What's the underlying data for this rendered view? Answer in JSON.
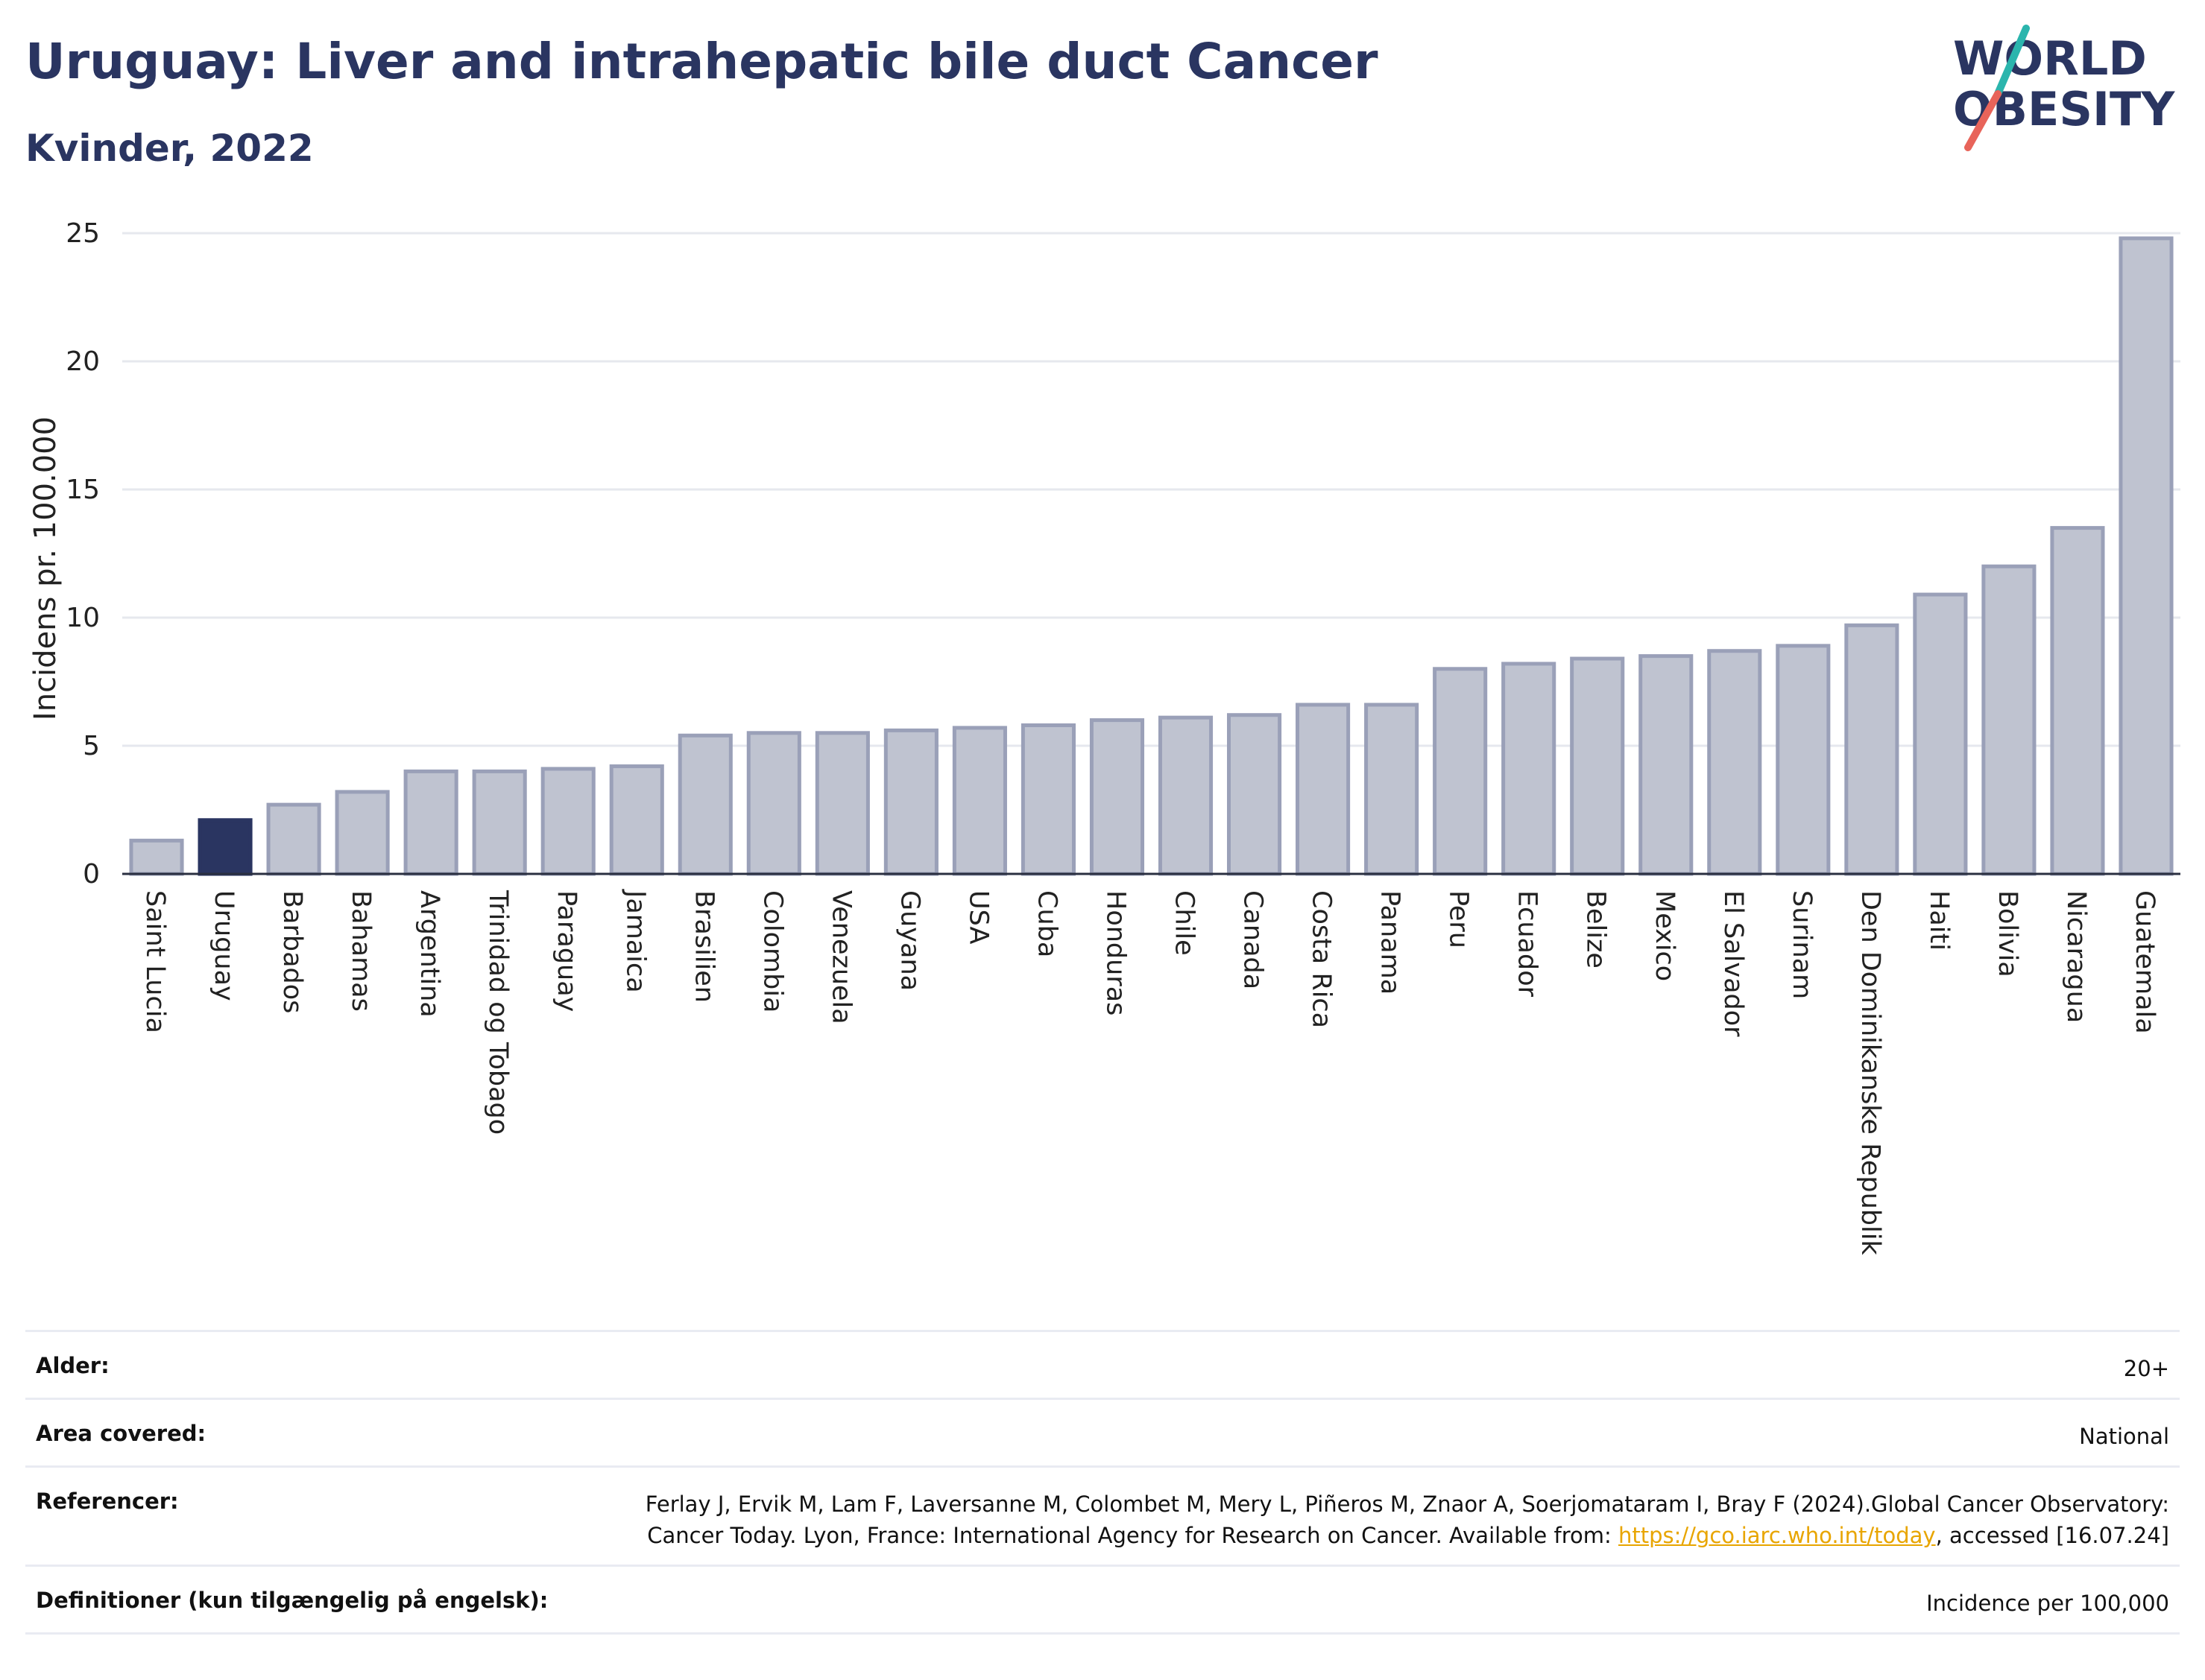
{
  "header": {
    "title": "Uruguay: Liver and intrahepatic bile duct Cancer",
    "subtitle": "Kvinder, 2022"
  },
  "logo": {
    "line1": "WORLD",
    "line2": "OBESITY",
    "colors": {
      "text": "#2a3561",
      "slash_teal": "#2bb5ad",
      "slash_red": "#e8645a"
    }
  },
  "chart_data": {
    "type": "bar",
    "title": "Uruguay: Liver and intrahepatic bile duct Cancer",
    "subtitle": "Kvinder, 2022",
    "xlabel": "",
    "ylabel": "Incidens pr. 100.000",
    "ylim": [
      0,
      25
    ],
    "yticks": [
      0,
      5,
      10,
      15,
      20,
      25
    ],
    "grid": true,
    "highlight": "Uruguay",
    "colors": {
      "highlight": "#2a3561",
      "bar_fill": "#bfc3d0",
      "bar_stroke": "#9aa0b8",
      "grid": "#e6e8ee"
    },
    "categories": [
      "Saint Lucia",
      "Uruguay",
      "Barbados",
      "Bahamas",
      "Argentina",
      "Trinidad og Tobago",
      "Paraguay",
      "Jamaica",
      "Brasilien",
      "Colombia",
      "Venezuela",
      "Guyana",
      "USA",
      "Cuba",
      "Honduras",
      "Chile",
      "Canada",
      "Costa Rica",
      "Panama",
      "Peru",
      "Ecuador",
      "Belize",
      "Mexico",
      "El Salvador",
      "Surinam",
      "Den Dominikanske Republik",
      "Haiti",
      "Bolivia",
      "Nicaragua",
      "Guatemala"
    ],
    "values": [
      1.3,
      2.1,
      2.7,
      3.2,
      4.0,
      4.0,
      4.1,
      4.2,
      5.4,
      5.5,
      5.5,
      5.6,
      5.7,
      5.8,
      6.0,
      6.1,
      6.2,
      6.6,
      6.6,
      8.0,
      8.2,
      8.4,
      8.5,
      8.7,
      8.9,
      9.7,
      10.9,
      12.0,
      13.5,
      24.8
    ]
  },
  "meta": [
    {
      "key": "Alder:",
      "value": "20+"
    },
    {
      "key": "Area covered:",
      "value": "National"
    },
    {
      "key": "Referencer:",
      "value_before": "Ferlay J, Ervik M, Lam F, Laversanne M, Colombet M, Mery L, Piñeros M, Znaor A, Soerjomataram I, Bray F (2024).Global Cancer Observatory: Cancer Today. Lyon, France: International Agency for Research on Cancer. Available from: ",
      "link": "https://gco.iarc.who.int/today",
      "value_after": ", accessed [16.07.24]"
    },
    {
      "key": "Definitioner (kun tilgængelig på engelsk):",
      "value": "Incidence per 100,000"
    }
  ]
}
